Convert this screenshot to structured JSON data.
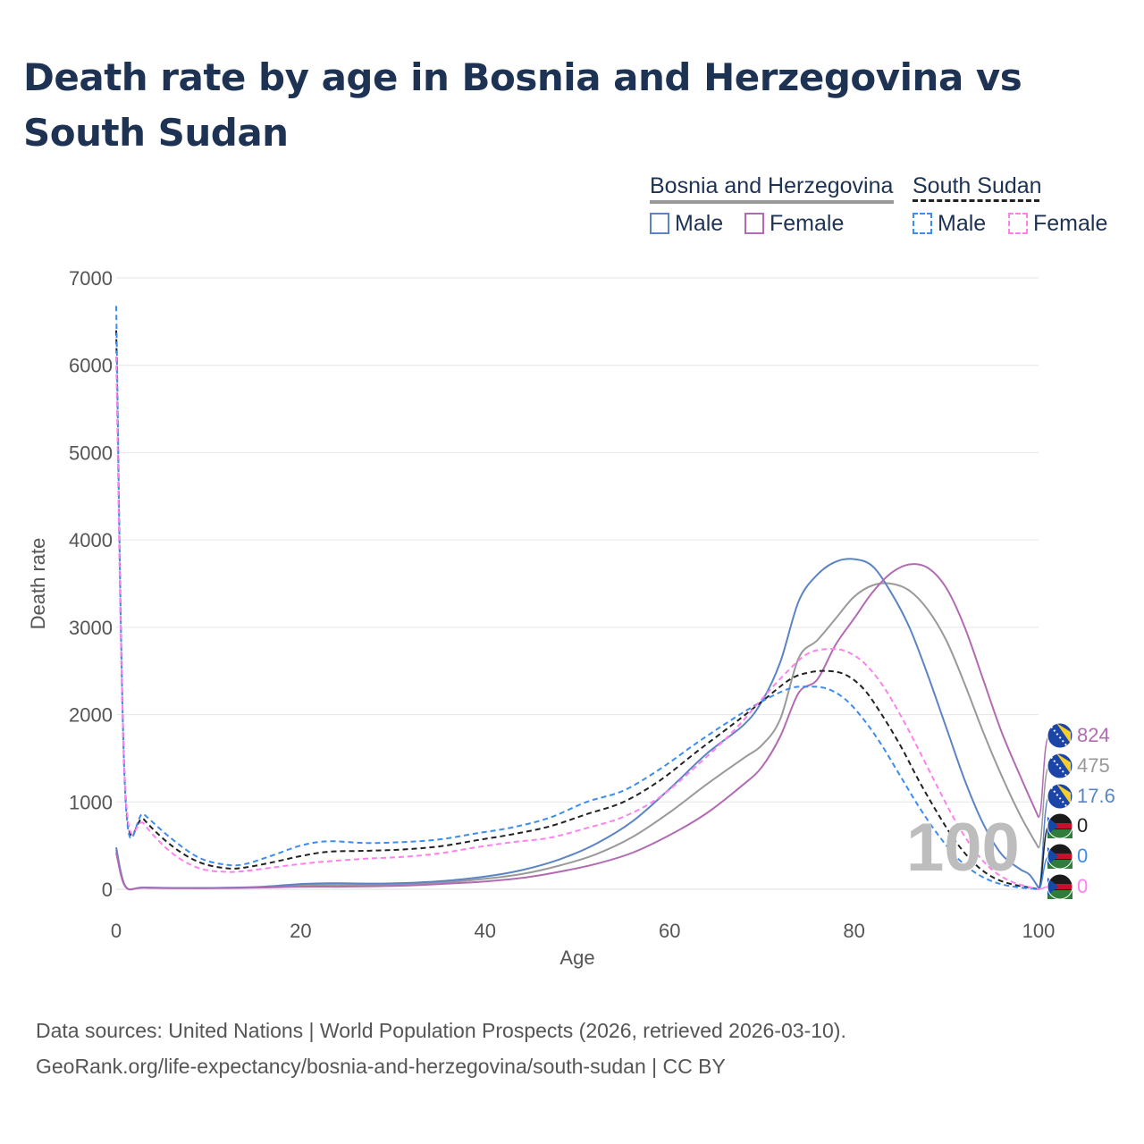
{
  "title": "Death rate by age in Bosnia and Herzegovina vs South Sudan",
  "legend": {
    "groups": [
      {
        "name": "Bosnia and Herzegovina",
        "items": [
          {
            "label": "Male",
            "color": "#5b84c4"
          },
          {
            "label": "Female",
            "color": "#b26bb3"
          }
        ]
      },
      {
        "name": "South Sudan",
        "items": [
          {
            "label": "Male",
            "color": "#3d8cf0"
          },
          {
            "label": "Female",
            "color": "#ff80f0"
          }
        ]
      }
    ]
  },
  "watermark": "100",
  "end_labels": [
    {
      "text": "824",
      "color": "#b26bb3",
      "flag": "bosnia-flag-icon"
    },
    {
      "text": "475",
      "color": "#999999",
      "flag": "bosnia-flag-icon"
    },
    {
      "text": "17.6",
      "color": "#5b84c4",
      "flag": "bosnia-flag-icon"
    },
    {
      "text": "0",
      "color": "#222222",
      "flag": "south-sudan-flag-icon"
    },
    {
      "text": "0",
      "color": "#3d8cf0",
      "flag": "south-sudan-flag-icon"
    },
    {
      "text": "0",
      "color": "#ff80f0",
      "flag": "south-sudan-flag-icon"
    }
  ],
  "footer": {
    "line1": "Data sources: United Nations | World Population Prospects (2026, retrieved 2026-03-10).",
    "line2": "GeoRank.org/life-expectancy/bosnia-and-herzegovina/south-sudan | CC BY"
  },
  "chart_data": {
    "type": "line",
    "xlabel": "Age",
    "ylabel": "Death rate",
    "xlim": [
      0,
      100
    ],
    "ylim": [
      0,
      7000
    ],
    "xticks": [
      0,
      20,
      40,
      60,
      80,
      100
    ],
    "yticks": [
      0,
      1000,
      2000,
      3000,
      4000,
      5000,
      6000,
      7000
    ],
    "grid": true,
    "series": [
      {
        "name": "Bosnia and Herzegovina Male",
        "color": "#5b84c4",
        "dash": false,
        "width": 2,
        "x": [
          0,
          1,
          3,
          8,
          12,
          16,
          20,
          23,
          28,
          32,
          36,
          40,
          44,
          48,
          52,
          56,
          60,
          64,
          68,
          70,
          72,
          74,
          76,
          78,
          80,
          82,
          84,
          86,
          88,
          90,
          92,
          94,
          96,
          98,
          99,
          100
        ],
        "y": [
          480,
          35,
          20,
          15,
          18,
          30,
          60,
          70,
          65,
          75,
          100,
          145,
          220,
          340,
          520,
          780,
          1150,
          1550,
          1880,
          2150,
          2600,
          3300,
          3600,
          3750,
          3780,
          3700,
          3400,
          3000,
          2450,
          1850,
          1250,
          750,
          400,
          230,
          170,
          17.6
        ]
      },
      {
        "name": "Bosnia and Herzegovina Female",
        "color": "#b26bb3",
        "dash": false,
        "width": 2,
        "x": [
          0,
          1,
          3,
          8,
          12,
          16,
          20,
          24,
          28,
          32,
          36,
          40,
          44,
          48,
          52,
          56,
          60,
          64,
          68,
          70,
          72,
          74,
          76,
          78,
          80,
          82,
          84,
          86,
          88,
          90,
          92,
          94,
          96,
          98,
          100
        ],
        "y": [
          420,
          30,
          18,
          12,
          14,
          20,
          30,
          30,
          35,
          45,
          65,
          90,
          130,
          200,
          290,
          420,
          620,
          870,
          1200,
          1400,
          1750,
          2250,
          2400,
          2800,
          3100,
          3400,
          3620,
          3720,
          3680,
          3450,
          3000,
          2400,
          1800,
          1300,
          824
        ]
      },
      {
        "name": "Bosnia and Herzegovina (both)",
        "color": "#999999",
        "dash": false,
        "width": 2,
        "x": [
          0,
          1,
          3,
          8,
          12,
          16,
          20,
          24,
          28,
          32,
          36,
          40,
          44,
          48,
          52,
          56,
          60,
          64,
          68,
          70,
          72,
          74,
          76,
          78,
          80,
          82,
          84,
          86,
          88,
          90,
          92,
          94,
          96,
          98,
          100
        ],
        "y": [
          450,
          33,
          20,
          14,
          16,
          25,
          45,
          50,
          50,
          60,
          82,
          120,
          175,
          270,
          400,
          600,
          880,
          1200,
          1500,
          1650,
          1950,
          2650,
          2850,
          3100,
          3350,
          3480,
          3500,
          3420,
          3200,
          2850,
          2350,
          1800,
          1300,
          850,
          475
        ]
      },
      {
        "name": "South Sudan (both)",
        "color": "#222222",
        "dash": true,
        "width": 2,
        "x": [
          0,
          1,
          3,
          6,
          9,
          12,
          14,
          17,
          20,
          23,
          27,
          31,
          35,
          39,
          43,
          47,
          51,
          55,
          59,
          63,
          67,
          70,
          73,
          75,
          77,
          79,
          81,
          83,
          85,
          87,
          89,
          91,
          93,
          95,
          97,
          99,
          100
        ],
        "y": [
          6400,
          1100,
          800,
          500,
          310,
          240,
          250,
          310,
          380,
          430,
          440,
          455,
          490,
          560,
          630,
          720,
          860,
          1000,
          1250,
          1580,
          1900,
          2150,
          2400,
          2480,
          2500,
          2460,
          2300,
          2000,
          1650,
          1250,
          880,
          550,
          300,
          140,
          60,
          20,
          0
        ]
      },
      {
        "name": "South Sudan Male",
        "color": "#3d8cf0",
        "dash": true,
        "width": 2,
        "x": [
          0,
          1,
          3,
          6,
          9,
          12,
          14,
          17,
          20,
          23,
          27,
          31,
          35,
          39,
          43,
          47,
          51,
          55,
          59,
          63,
          67,
          70,
          73,
          75,
          77,
          79,
          81,
          83,
          85,
          87,
          89,
          91,
          93,
          95,
          97,
          99,
          100
        ],
        "y": [
          6680,
          1050,
          860,
          580,
          360,
          280,
          290,
          390,
          500,
          550,
          530,
          540,
          570,
          640,
          710,
          820,
          1000,
          1130,
          1380,
          1680,
          1960,
          2150,
          2300,
          2320,
          2300,
          2180,
          1950,
          1650,
          1300,
          950,
          640,
          380,
          200,
          90,
          35,
          10,
          0
        ]
      },
      {
        "name": "South Sudan Female",
        "color": "#ff80f0",
        "dash": true,
        "width": 2,
        "x": [
          0,
          1,
          3,
          6,
          9,
          12,
          14,
          17,
          20,
          23,
          27,
          31,
          35,
          39,
          43,
          47,
          51,
          55,
          59,
          63,
          67,
          70,
          73,
          75,
          77,
          79,
          81,
          83,
          85,
          87,
          89,
          91,
          93,
          95,
          97,
          99,
          100
        ],
        "y": [
          6100,
          1120,
          750,
          420,
          240,
          200,
          210,
          250,
          290,
          320,
          350,
          370,
          410,
          480,
          540,
          590,
          700,
          830,
          1060,
          1420,
          1820,
          2180,
          2520,
          2700,
          2750,
          2730,
          2600,
          2350,
          2000,
          1600,
          1180,
          780,
          450,
          220,
          90,
          25,
          0
        ]
      }
    ]
  }
}
